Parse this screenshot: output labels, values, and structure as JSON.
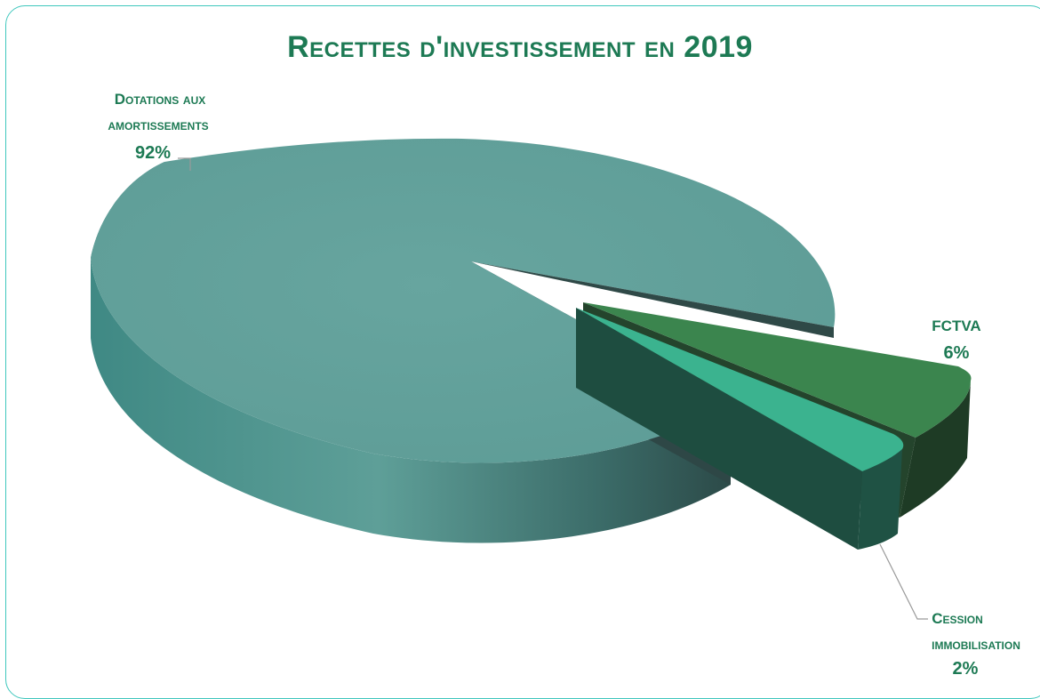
{
  "chart_data": {
    "type": "pie",
    "title": "Recettes d'investissement en 2019",
    "slices": [
      {
        "label_line1": "Dotations aux",
        "label_line2": "amortissements",
        "percent_label": "92%",
        "value": 92,
        "color": "#62a19b"
      },
      {
        "label_line1": "FCTVA",
        "label_line2": "",
        "percent_label": "6%",
        "value": 6,
        "color": "#3b854e"
      },
      {
        "label_line1": "Cession",
        "label_line2": "immobilisation",
        "percent_label": "2%",
        "value": 2,
        "color": "#3bb38f"
      }
    ],
    "legend": "none",
    "three_d": true
  }
}
